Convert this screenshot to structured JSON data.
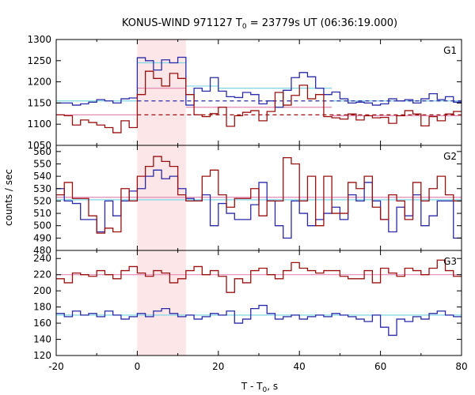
{
  "chart_data": {
    "type": "line",
    "title_main": "KONUS-WIND 971127 T",
    "title_sub": "0",
    "title_rest": " = 23779s UT (06:36:19.000)",
    "xlabel_main": "T - T",
    "xlabel_sub": "0",
    "xlabel_rest": ", s",
    "ylabel": "counts / sec",
    "xlim": [
      -20,
      80
    ],
    "xticks": [
      -20,
      0,
      20,
      40,
      60,
      80
    ],
    "highlight": [
      0,
      12
    ],
    "colors": {
      "blue": "#2a2aa8",
      "red": "#9a1010",
      "cyan": "#7fd6e6",
      "pink": "#e58ab4",
      "highlight": "#fde6e8"
    },
    "panels": [
      {
        "name": "G1",
        "ylim": [
          1050,
          1300
        ],
        "yticks": [
          1050,
          1100,
          1150,
          1200,
          1250,
          1300
        ],
        "bin_edges": [
          -20,
          -18,
          -16,
          -14,
          -12,
          -10,
          -8,
          -6,
          -4,
          -2,
          0,
          2,
          4,
          6,
          8,
          10,
          12,
          14,
          16,
          18,
          20,
          22,
          24,
          26,
          28,
          30,
          32,
          34,
          36,
          38,
          40,
          42,
          44,
          46,
          48,
          50,
          52,
          54,
          56,
          58,
          60,
          62,
          64,
          66,
          68,
          70,
          72,
          74,
          76,
          78,
          80
        ],
        "series": [
          {
            "color": "blue",
            "values": [
              1150,
              1150,
              1145,
              1148,
              1152,
              1158,
              1155,
              1150,
              1160,
              1162,
              1257,
              1250,
              1228,
              1252,
              1245,
              1258,
              1145,
              1185,
              1178,
              1210,
              1178,
              1165,
              1163,
              1175,
              1170,
              1148,
              1155,
              1140,
              1180,
              1210,
              1222,
              1212,
              1185,
              1170,
              1176,
              1160,
              1150,
              1152,
              1150,
              1145,
              1148,
              1160,
              1155,
              1158,
              1150,
              1160,
              1172,
              1158,
              1165,
              1152
            ]
          },
          {
            "color": "red",
            "values": [
              1122,
              1120,
              1098,
              1110,
              1104,
              1098,
              1092,
              1080,
              1108,
              1092,
              1170,
              1225,
              1208,
              1190,
              1220,
              1208,
              1170,
              1122,
              1118,
              1125,
              1140,
              1095,
              1120,
              1128,
              1132,
              1108,
              1130,
              1175,
              1145,
              1168,
              1192,
              1160,
              1170,
              1118,
              1115,
              1112,
              1124,
              1110,
              1120,
              1115,
              1116,
              1102,
              1120,
              1132,
              1124,
              1096,
              1118,
              1108,
              1124,
              1130
            ]
          }
        ],
        "fits": [
          {
            "color": "cyan",
            "dash": false,
            "segments": [
              [
                -20,
                0,
                1155
              ],
              [
                0,
                12,
                1245
              ],
              [
                12,
                20,
                1190
              ],
              [
                20,
                48,
                1185
              ],
              [
                48,
                80,
                1155
              ]
            ]
          },
          {
            "color": "pink",
            "dash": false,
            "segments": [
              [
                -20,
                0,
                1122
              ],
              [
                0,
                12,
                1185
              ],
              [
                12,
                48,
                1140
              ],
              [
                48,
                80,
                1120
              ]
            ]
          },
          {
            "color": "blue",
            "dash": true,
            "segments": [
              [
                0,
                80,
                1155
              ]
            ]
          },
          {
            "color": "red",
            "dash": true,
            "segments": [
              [
                0,
                80,
                1122
              ]
            ]
          }
        ]
      },
      {
        "name": "G2",
        "ylim": [
          480,
          565
        ],
        "yticks": [
          480,
          490,
          500,
          510,
          520,
          530,
          540,
          550,
          560
        ],
        "bin_edges": [
          -20,
          -18,
          -16,
          -14,
          -12,
          -10,
          -8,
          -6,
          -4,
          -2,
          0,
          2,
          4,
          6,
          8,
          10,
          12,
          14,
          16,
          18,
          20,
          22,
          24,
          26,
          28,
          30,
          32,
          34,
          36,
          38,
          40,
          42,
          44,
          46,
          48,
          50,
          52,
          54,
          56,
          58,
          60,
          62,
          64,
          66,
          68,
          70,
          72,
          74,
          76,
          78,
          80
        ],
        "series": [
          {
            "color": "blue",
            "values": [
              530,
              520,
              518,
              505,
              505,
              495,
              520,
              508,
              520,
              528,
              530,
              540,
              545,
              538,
              540,
              530,
              522,
              520,
              525,
              500,
              518,
              510,
              505,
              505,
              517,
              535,
              520,
              500,
              490,
              520,
              510,
              500,
              505,
              510,
              515,
              505,
              525,
              520,
              535,
              520,
              505,
              495,
              515,
              508,
              525,
              500,
              508,
              520,
              520,
              490
            ]
          },
          {
            "color": "red",
            "values": [
              525,
              535,
              522,
              522,
              508,
              494,
              498,
              495,
              530,
              520,
              540,
              548,
              556,
              552,
              548,
              525,
              520,
              520,
              540,
              545,
              525,
              515,
              522,
              522,
              530,
              508,
              520,
              520,
              555,
              550,
              520,
              540,
              500,
              540,
              510,
              510,
              535,
              530,
              540,
              515,
              505,
              525,
              520,
              505,
              535,
              520,
              530,
              540,
              525,
              520
            ]
          }
        ],
        "fits": [
          {
            "color": "cyan",
            "dash": false,
            "segments": [
              [
                -20,
                80,
                521
              ]
            ]
          },
          {
            "color": "pink",
            "dash": false,
            "segments": [
              [
                -20,
                80,
                523
              ]
            ]
          }
        ]
      },
      {
        "name": "G3",
        "ylim": [
          120,
          250
        ],
        "yticks": [
          120,
          140,
          160,
          180,
          200,
          220,
          240
        ],
        "bin_edges": [
          -20,
          -18,
          -16,
          -14,
          -12,
          -10,
          -8,
          -6,
          -4,
          -2,
          0,
          2,
          4,
          6,
          8,
          10,
          12,
          14,
          16,
          18,
          20,
          22,
          24,
          26,
          28,
          30,
          32,
          34,
          36,
          38,
          40,
          42,
          44,
          46,
          48,
          50,
          52,
          54,
          56,
          58,
          60,
          62,
          64,
          66,
          68,
          70,
          72,
          74,
          76,
          78,
          80
        ],
        "series": [
          {
            "color": "blue",
            "values": [
              172,
              168,
              175,
              170,
              172,
              168,
              175,
              170,
              165,
              168,
              172,
              168,
              175,
              178,
              172,
              168,
              170,
              165,
              168,
              172,
              170,
              175,
              160,
              165,
              178,
              182,
              172,
              165,
              168,
              170,
              165,
              168,
              170,
              168,
              172,
              170,
              168,
              165,
              162,
              170,
              155,
              145,
              165,
              162,
              168,
              165,
              172,
              175,
              170,
              168
            ]
          },
          {
            "color": "red",
            "values": [
              215,
              210,
              222,
              220,
              218,
              225,
              220,
              215,
              225,
              230,
              222,
              218,
              225,
              222,
              210,
              215,
              225,
              230,
              220,
              225,
              218,
              198,
              215,
              210,
              225,
              228,
              220,
              215,
              225,
              235,
              228,
              225,
              222,
              225,
              225,
              218,
              215,
              215,
              225,
              210,
              228,
              222,
              218,
              228,
              225,
              220,
              228,
              238,
              225,
              218
            ]
          }
        ],
        "fits": [
          {
            "color": "cyan",
            "dash": false,
            "segments": [
              [
                -20,
                80,
                170
              ]
            ]
          },
          {
            "color": "pink",
            "dash": false,
            "segments": [
              [
                -20,
                80,
                220
              ]
            ]
          }
        ]
      }
    ]
  }
}
